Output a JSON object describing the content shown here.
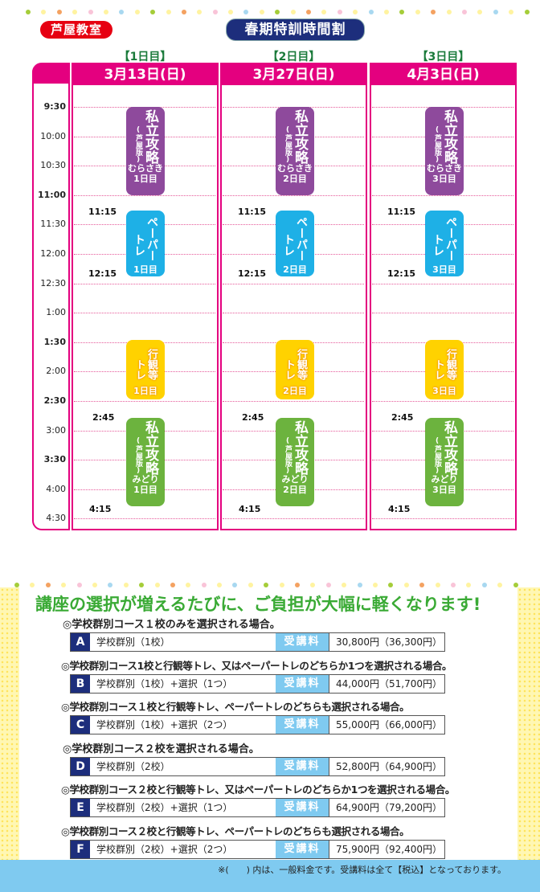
{
  "header": {
    "classroom_badge": "芦屋教室",
    "title": "春期特訓時間割",
    "dot_colors": [
      "#a5cd39",
      "#fff3a0",
      "#f4a261",
      "#fff3a0",
      "#f9c4d8",
      "#fff3a0",
      "#a8d8f0",
      "#fff3a0"
    ]
  },
  "days": [
    {
      "label": "【1日目】",
      "date": "3月13日(日)",
      "day_num": "1日目"
    },
    {
      "label": "【2日目】",
      "date": "3月27日(日)",
      "day_num": "2日目"
    },
    {
      "label": "【3日目】",
      "date": "4月3日(日)",
      "day_num": "3日目"
    }
  ],
  "time_labels": [
    {
      "t": "9:30",
      "bold": true
    },
    {
      "t": "10:00",
      "bold": false
    },
    {
      "t": "10:30",
      "bold": false
    },
    {
      "t": "11:00",
      "bold": true
    },
    {
      "t": "11:30",
      "bold": false
    },
    {
      "t": "12:00",
      "bold": false
    },
    {
      "t": "12:30",
      "bold": false
    },
    {
      "t": "1:00",
      "bold": false
    },
    {
      "t": "1:30",
      "bold": true
    },
    {
      "t": "2:00",
      "bold": false
    },
    {
      "t": "2:30",
      "bold": true
    },
    {
      "t": "3:00",
      "bold": false
    },
    {
      "t": "3:30",
      "bold": true
    },
    {
      "t": "4:00",
      "bold": false
    },
    {
      "t": "4:30",
      "bold": false
    }
  ],
  "start_times": {
    "paper_start": "11:15",
    "paper_end": "12:15",
    "midori_start": "2:45",
    "midori_end": "4:15"
  },
  "blocks": {
    "murasaki": {
      "title": "私立攻略",
      "region": "(芦屋版)",
      "sub": "むらさき",
      "color": "#8e4a9c"
    },
    "paper": {
      "title": "ペーパートレ",
      "col1": "ペーパー",
      "col2": "トレ",
      "color": "#1eb0e6"
    },
    "gyokan": {
      "col1": "行観等",
      "col2": "トレ",
      "color": "#ffd200",
      "text_color": "#f08c00"
    },
    "midori": {
      "title": "私立攻略",
      "region": "(芦屋版)",
      "sub": "みどり",
      "color": "#6cb33e"
    }
  },
  "pricing": {
    "headline": "講座の選択が増えるたびに、ご負担が大幅に軽くなります!",
    "fee_label": "受講料",
    "options": [
      {
        "condition": "◎学校群別コース１校のみを選択される場合。",
        "letter": "A",
        "label": "学校群別（1校）",
        "price": "30,800円（36,300円）"
      },
      {
        "condition": "◎学校群別コース1校と行観等トレ、又はペーパートレのどちらか1つを選択される場合。",
        "letter": "B",
        "label": "学校群別（1校）+選択（1つ）",
        "price": "44,000円（51,700円）"
      },
      {
        "condition": "◎学校群別コース１校と行観等トレ、ペーパートレのどちらも選択される場合。",
        "letter": "C",
        "label": "学校群別（1校）+選択（2つ）",
        "price": "55,000円（66,000円）"
      },
      {
        "condition": "◎学校群別コース２校を選択される場合。",
        "letter": "D",
        "label": "学校群別（2校）",
        "price": "52,800円（64,900円）"
      },
      {
        "condition": "◎学校群別コース２校と行観等トレ、又はペーパートレのどちらか1つを選択される場合。",
        "letter": "E",
        "label": "学校群別（2校）+選択（1つ）",
        "price": "64,900円（79,200円）"
      },
      {
        "condition": "◎学校群別コース２校と行観等トレ、ペーパートレのどちらも選択される場合。",
        "letter": "F",
        "label": "学校群別（2校）+選択（2つ）",
        "price": "75,900円（92,400円）"
      }
    ],
    "footnote": "※(　　) 内は、一般料金です。受講料は全て【税込】となっております。"
  }
}
